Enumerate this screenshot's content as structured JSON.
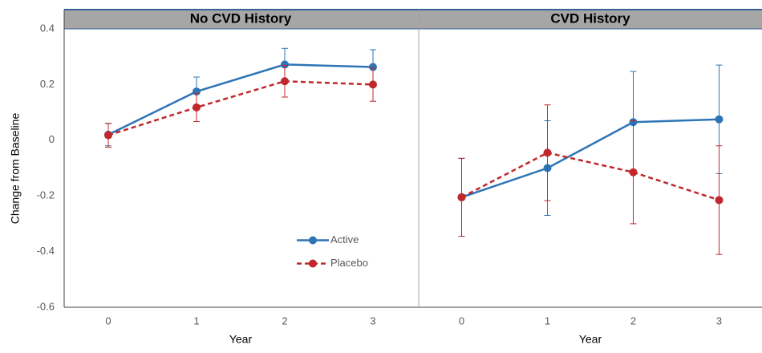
{
  "chart_data": [
    {
      "type": "line",
      "title": "No CVD History",
      "xlabel": "Year",
      "ylabel": "Change from Baseline",
      "x": [
        0,
        1,
        2,
        3
      ],
      "xlim": [
        -0.5,
        3.5
      ],
      "ylim": [
        -0.6,
        0.4
      ],
      "yticks": [
        0.4,
        0.2,
        0,
        -0.2,
        -0.4,
        -0.6
      ],
      "legend": "center right",
      "series": [
        {
          "name": "Active",
          "color": "#2e75b6",
          "linestyle": "solid",
          "values": [
            0.02,
            0.175,
            0.272,
            0.263
          ],
          "errors": [
            0.04,
            0.052,
            0.058,
            0.062
          ]
        },
        {
          "name": "Placebo",
          "color": "#c0282d",
          "linestyle": "dashed",
          "values": [
            0.018,
            0.118,
            0.212,
            0.2
          ],
          "errors": [
            0.043,
            0.051,
            0.057,
            0.06
          ]
        }
      ]
    },
    {
      "type": "line",
      "title": "CVD History",
      "xlabel": "Year",
      "x": [
        0,
        1,
        2,
        3
      ],
      "xlim": [
        -0.5,
        3.5
      ],
      "ylim": [
        -0.6,
        0.4
      ],
      "series": [
        {
          "color": "#2e75b6",
          "linestyle": "solid",
          "values": [
            -0.205,
            -0.1,
            0.065,
            0.075
          ],
          "errors": [
            0.14,
            0.17,
            0.182,
            0.195
          ]
        },
        {
          "color": "#c0282d",
          "linestyle": "dashed",
          "values": [
            -0.205,
            -0.045,
            -0.115,
            -0.215
          ],
          "errors": [
            0.14,
            0.172,
            0.185,
            0.195
          ]
        }
      ]
    }
  ]
}
